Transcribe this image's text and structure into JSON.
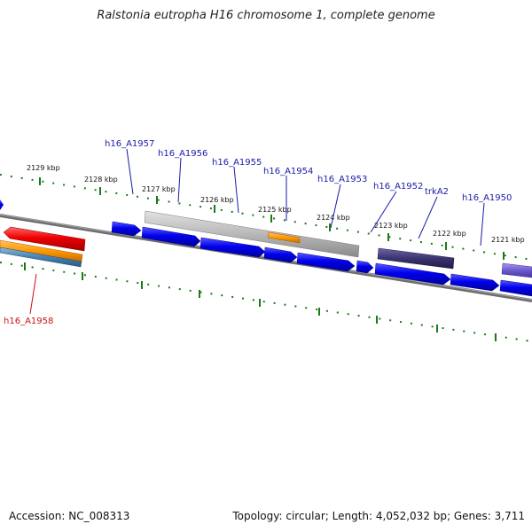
{
  "header": {
    "title": "Ralstonia eutropha H16 chromosome 1, complete genome"
  },
  "footer": {
    "accession": "Accession: NC_008313",
    "summary": "Topology: circular; Length: 4,052,032 bp; Genes: 3,711"
  },
  "ruler": {
    "ticks": [
      "2129 kbp",
      "2128 kbp",
      "2127 kbp",
      "2126 kbp",
      "2125 kbp",
      "2124 kbp",
      "2123 kbp",
      "2122 kbp",
      "2121 kbp"
    ]
  },
  "genes": {
    "labels": [
      {
        "text": "h16_A1957",
        "color": "#1a1aaa"
      },
      {
        "text": "h16_A1956",
        "color": "#1a1aaa"
      },
      {
        "text": "h16_A1955",
        "color": "#1a1aaa"
      },
      {
        "text": "h16_A1954",
        "color": "#1a1aaa"
      },
      {
        "text": "h16_A1953",
        "color": "#1a1aaa"
      },
      {
        "text": "h16_A1952",
        "color": "#1a1aaa"
      },
      {
        "text": "trkA2",
        "color": "#1a1aaa"
      },
      {
        "text": "h16_A1950",
        "color": "#1a1aaa"
      },
      {
        "text": "h16_A1958",
        "color": "#cc1111"
      }
    ]
  },
  "colors": {
    "cds_blue": "#0000ee",
    "cds_red": "#ee0000",
    "cds_orange": "#ff9900",
    "cds_gray": "#b0b0b0",
    "cds_dark_purple": "#3a3370",
    "cds_light_purple": "#6a5acd",
    "steel_blue": "#4682b4",
    "backbone": "#808080",
    "tick_green": "#1a7a1a"
  }
}
